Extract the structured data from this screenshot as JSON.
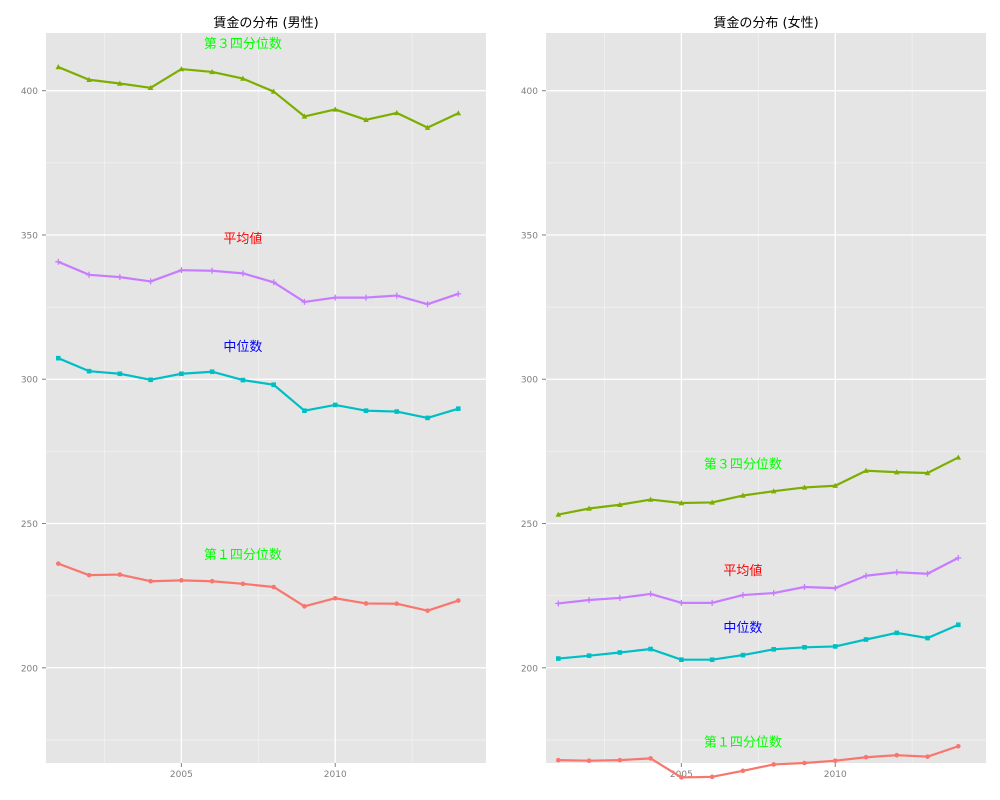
{
  "chart_data": [
    {
      "type": "line",
      "title": "賃金の分布 (男性)",
      "xlabel": "",
      "ylabel": "",
      "x": [
        2001,
        2002,
        2003,
        2004,
        2005,
        2006,
        2007,
        2008,
        2009,
        2010,
        2011,
        2012,
        2013,
        2014
      ],
      "xlim": [
        2000.6,
        2014.9
      ],
      "ylim": [
        167,
        420
      ],
      "xticks": [
        2005,
        2010
      ],
      "yticks": [
        200,
        250,
        300,
        350,
        400
      ],
      "grid": true,
      "legend": "none",
      "series": [
        {
          "name": "第３四分位数",
          "color": "#7CAE00",
          "marker": "triangle",
          "values": [
            408.2,
            403.8,
            402.5,
            401.0,
            407.5,
            406.5,
            404.2,
            399.7,
            391.1,
            393.5,
            389.9,
            392.3,
            387.2,
            392.2
          ]
        },
        {
          "name": "平均値",
          "color": "#C77CFF",
          "marker": "plus",
          "values": [
            340.7,
            336.2,
            335.4,
            333.9,
            337.8,
            337.6,
            336.7,
            333.6,
            326.8,
            328.3,
            328.3,
            329.0,
            326.0,
            329.6
          ]
        },
        {
          "name": "中位数",
          "color": "#00BFC4",
          "marker": "square",
          "values": [
            307.3,
            302.8,
            301.9,
            299.8,
            301.9,
            302.6,
            299.7,
            298.1,
            289.1,
            291.1,
            289.1,
            288.8,
            286.6,
            289.8
          ]
        },
        {
          "name": "第１四分位数",
          "color": "#F8766D",
          "marker": "circle",
          "values": [
            236.1,
            232.1,
            232.3,
            230.0,
            230.3,
            230.0,
            229.1,
            228.0,
            221.3,
            224.1,
            222.3,
            222.2,
            219.8,
            223.3
          ]
        }
      ],
      "annotations": [
        {
          "text": "第３四分位数",
          "x": 2007,
          "y": 416.6,
          "color": "#00FF00"
        },
        {
          "text": "平均値",
          "x": 2007,
          "y": 349.0,
          "color": "#FF0000"
        },
        {
          "text": "中位数",
          "x": 2007,
          "y": 311.5,
          "color": "#0000FF"
        },
        {
          "text": "第１四分位数",
          "x": 2007,
          "y": 239.5,
          "color": "#00FF00"
        }
      ]
    },
    {
      "type": "line",
      "title": "賃金の分布 (女性)",
      "xlabel": "",
      "ylabel": "",
      "x": [
        2001,
        2002,
        2003,
        2004,
        2005,
        2006,
        2007,
        2008,
        2009,
        2010,
        2011,
        2012,
        2013,
        2014
      ],
      "xlim": [
        2000.6,
        2014.9
      ],
      "ylim": [
        167,
        420
      ],
      "xticks": [
        2005,
        2010
      ],
      "yticks": [
        200,
        250,
        300,
        350,
        400
      ],
      "grid": true,
      "legend": "none",
      "series": [
        {
          "name": "第３四分位数",
          "color": "#7CAE00",
          "marker": "triangle",
          "values": [
            253.1,
            255.2,
            256.5,
            258.3,
            257.1,
            257.3,
            259.7,
            261.2,
            262.5,
            263.1,
            268.3,
            267.8,
            267.5,
            272.9
          ]
        },
        {
          "name": "平均値",
          "color": "#C77CFF",
          "marker": "plus",
          "values": [
            222.3,
            223.5,
            224.2,
            225.6,
            222.5,
            222.5,
            225.2,
            225.9,
            228.0,
            227.6,
            231.9,
            233.1,
            232.6,
            238.1
          ]
        },
        {
          "name": "中位数",
          "color": "#00BFC4",
          "marker": "square",
          "values": [
            203.2,
            204.2,
            205.3,
            206.5,
            202.8,
            202.8,
            204.4,
            206.4,
            207.1,
            207.4,
            209.8,
            212.1,
            210.3,
            214.9
          ]
        },
        {
          "name": "第１四分位数",
          "color": "#F8766D",
          "marker": "circle",
          "values": [
            168.0,
            167.8,
            168.0,
            168.6,
            162.0,
            162.2,
            164.3,
            166.5,
            167.0,
            167.8,
            169.0,
            169.7,
            169.2,
            172.8
          ]
        }
      ],
      "annotations": [
        {
          "text": "第３四分位数",
          "x": 2007,
          "y": 270.8,
          "color": "#00FF00"
        },
        {
          "text": "平均値",
          "x": 2007,
          "y": 233.9,
          "color": "#FF0000"
        },
        {
          "text": "中位数",
          "x": 2007,
          "y": 214.1,
          "color": "#0000FF"
        },
        {
          "text": "第１四分位数",
          "x": 2007,
          "y": 174.5,
          "color": "#00FF00"
        }
      ]
    }
  ]
}
